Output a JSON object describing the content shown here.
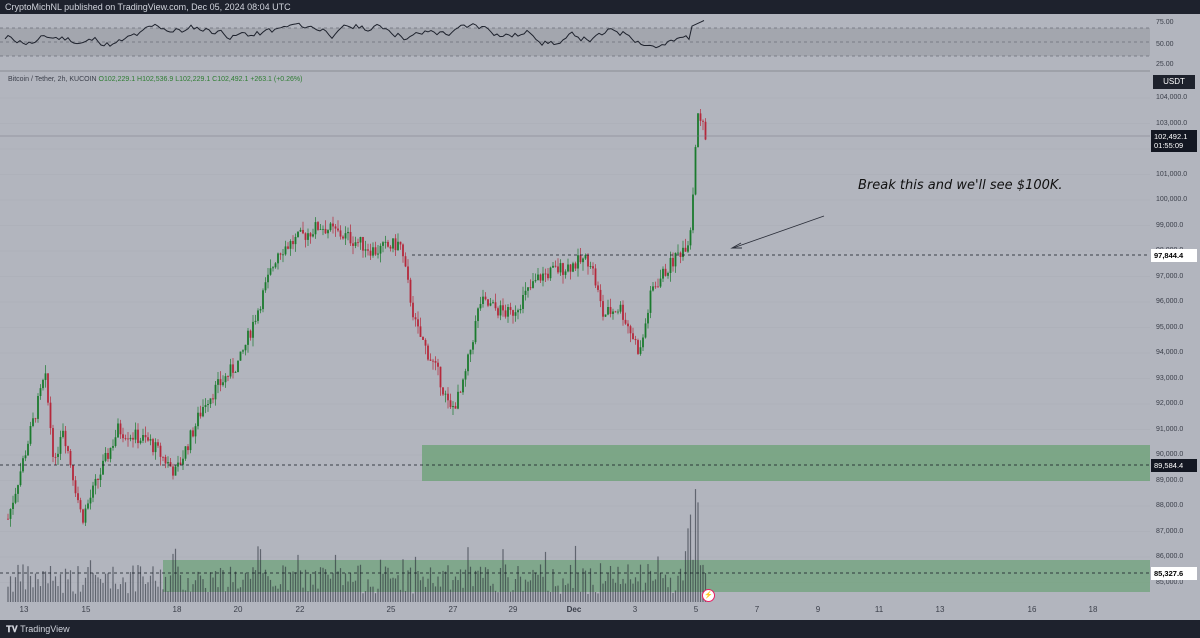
{
  "header": {
    "published_text": "CryptoMichNL published on TradingView.com, Dec 05, 2024 08:04 UTC"
  },
  "legend": {
    "symbol": "Bitcoin / Tether, 2h, KUCOIN",
    "ohlc": "O102,229.1 H102,536.9 L102,229.1 C102,492.1 +263.1 (+0.26%)"
  },
  "annotation": {
    "text": "Break this and we'll see $100K."
  },
  "price_axis": {
    "currency": "USDT",
    "ticks": [
      "104,000.0",
      "103,000.0",
      "102,000.0",
      "101,000.0",
      "100,000.0",
      "99,000.0",
      "98,000.0",
      "97,000.0",
      "96,000.0",
      "95,000.0",
      "94,000.0",
      "93,000.0",
      "92,000.0",
      "91,000.0",
      "90,000.0",
      "89,000.0",
      "88,000.0",
      "87,000.0",
      "86,000.0",
      "85,000.0"
    ],
    "last_price": "102,492.1",
    "countdown": "01:55:09",
    "levels": [
      "97,844.4",
      "89,584.4",
      "85,327.6"
    ]
  },
  "osc_axis": {
    "ticks": [
      "75.00",
      "50.00",
      "25.00"
    ]
  },
  "x_axis": {
    "labels": [
      "13",
      "15",
      "18",
      "20",
      "22",
      "25",
      "27",
      "29",
      "Dec",
      "3",
      "5",
      "7",
      "9",
      "11",
      "13",
      "16",
      "18"
    ]
  },
  "footer": {
    "brand": "TradingView"
  },
  "colors": {
    "background": "#b2b5be",
    "up": "#1b7a2e",
    "down": "#b5283b",
    "zone": "#5f9e6a",
    "bar": "#1e222d"
  },
  "chart_data": {
    "type": "candlestick",
    "title": "Bitcoin / Tether, 2h, KUCOIN",
    "ylim": [
      84700,
      104800
    ],
    "x_dates": [
      "Nov 13",
      "Nov 15",
      "Nov 18",
      "Nov 20",
      "Nov 22",
      "Nov 25",
      "Nov 27",
      "Nov 29",
      "Dec 1",
      "Dec 3",
      "Dec 5",
      "Dec 7",
      "Dec 9",
      "Dec 11",
      "Dec 13",
      "Dec 16",
      "Dec 18"
    ],
    "price_path": [
      {
        "date": "Nov 13",
        "price": 87500
      },
      {
        "date": "Nov 13",
        "price": 93100
      },
      {
        "date": "Nov 14",
        "price": 89500
      },
      {
        "date": "Nov 14",
        "price": 91300
      },
      {
        "date": "Nov 15",
        "price": 87500
      },
      {
        "date": "Nov 16",
        "price": 91000
      },
      {
        "date": "Nov 17",
        "price": 90500
      },
      {
        "date": "Nov 18",
        "price": 89300
      },
      {
        "date": "Nov 19",
        "price": 92100
      },
      {
        "date": "Nov 20",
        "price": 93700
      },
      {
        "date": "Nov 21",
        "price": 98000
      },
      {
        "date": "Nov 22",
        "price": 99000
      },
      {
        "date": "Nov 23",
        "price": 98500
      },
      {
        "date": "Nov 24",
        "price": 98000
      },
      {
        "date": "Nov 25",
        "price": 98300
      },
      {
        "date": "Nov 25",
        "price": 95000
      },
      {
        "date": "Nov 26",
        "price": 93000
      },
      {
        "date": "Nov 26",
        "price": 91700
      },
      {
        "date": "Nov 27",
        "price": 92500
      },
      {
        "date": "Nov 28",
        "price": 96000
      },
      {
        "date": "Nov 29",
        "price": 95500
      },
      {
        "date": "Nov 30",
        "price": 97000
      },
      {
        "date": "Dec 1",
        "price": 97300
      },
      {
        "date": "Dec 2",
        "price": 97700
      },
      {
        "date": "Dec 2",
        "price": 95500
      },
      {
        "date": "Dec 3",
        "price": 95800
      },
      {
        "date": "Dec 4",
        "price": 94000
      },
      {
        "date": "Dec 4",
        "price": 96500
      },
      {
        "date": "Dec 5",
        "price": 98500
      },
      {
        "date": "Dec 5",
        "price": 103500
      },
      {
        "date": "Dec 5",
        "price": 102492.1
      }
    ],
    "levels": [
      {
        "label": "97,844.4",
        "price": 97844.4
      },
      {
        "label": "89,584.4",
        "price": 89584.4
      },
      {
        "label": "85,327.6",
        "price": 85327.6
      }
    ],
    "zones": [
      {
        "from": "Nov 25",
        "to": "Dec 18",
        "low": 88900,
        "high": 90350
      },
      {
        "from": "Nov 17",
        "to": "Dec 18",
        "low": 84550,
        "high": 85850
      }
    ],
    "oscillator": {
      "ylim": [
        20,
        80
      ],
      "levels": [
        30,
        50,
        70
      ],
      "last": 74
    },
    "grid": true
  }
}
